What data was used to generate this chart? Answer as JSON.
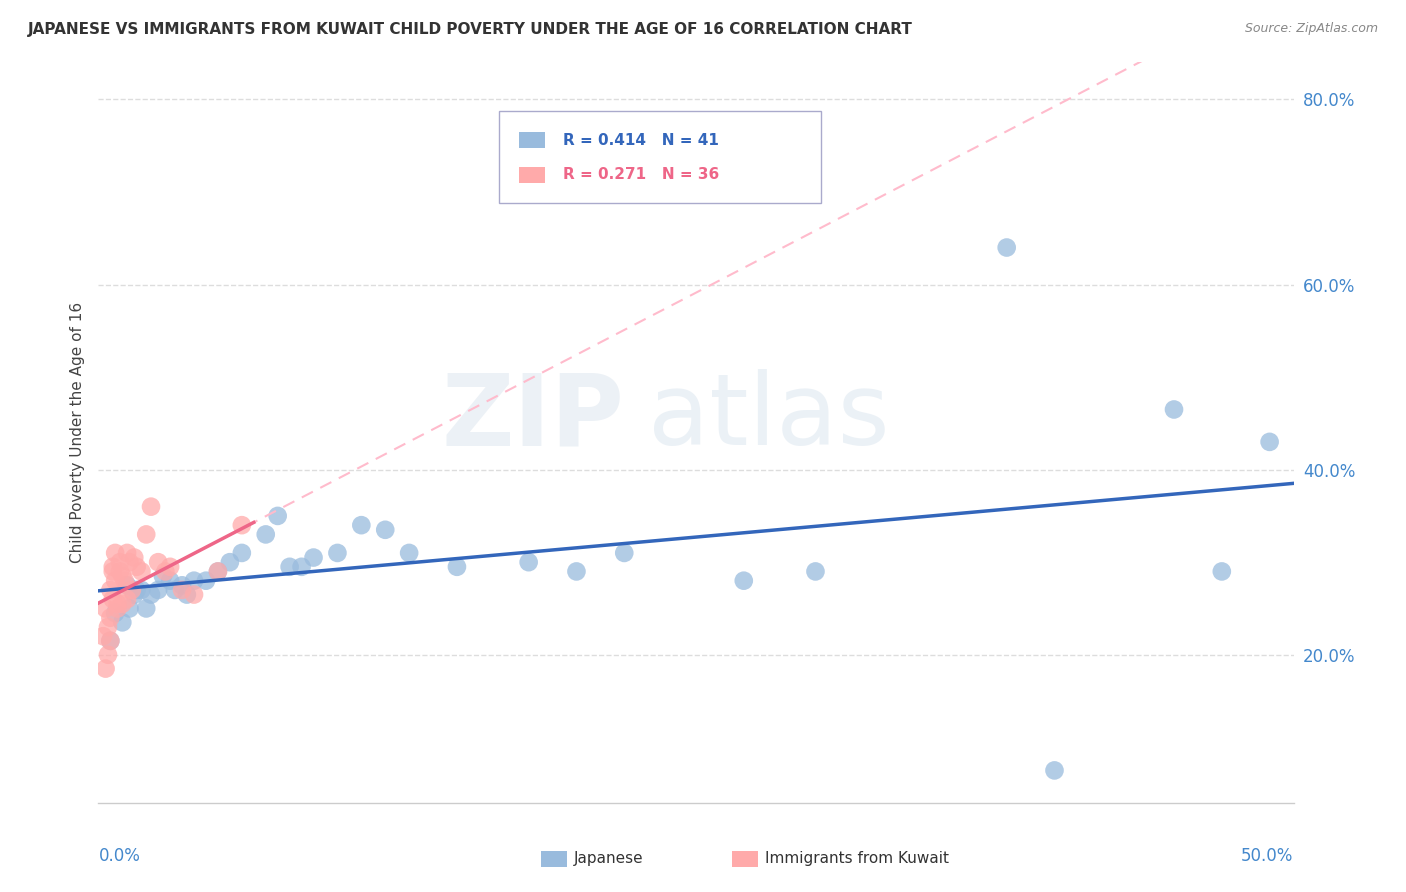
{
  "title": "JAPANESE VS IMMIGRANTS FROM KUWAIT CHILD POVERTY UNDER THE AGE OF 16 CORRELATION CHART",
  "source": "Source: ZipAtlas.com",
  "ylabel": "Child Poverty Under the Age of 16",
  "yticks": [
    0.2,
    0.4,
    0.6,
    0.8
  ],
  "ytick_labels": [
    "20.0%",
    "40.0%",
    "60.0%",
    "80.0%"
  ],
  "xlim": [
    0.0,
    0.5
  ],
  "ylim": [
    0.04,
    0.84
  ],
  "legend_blue_r": "R = 0.414",
  "legend_blue_n": "N = 41",
  "legend_pink_r": "R = 0.271",
  "legend_pink_n": "N = 36",
  "legend_label_blue": "Japanese",
  "legend_label_pink": "Immigrants from Kuwait",
  "blue_color": "#99bbdd",
  "pink_color": "#ffaaaa",
  "blue_line_color": "#3366bb",
  "pink_line_color": "#ee6688",
  "pink_dash_color": "#ffbbcc",
  "background_color": "#ffffff",
  "japanese_x": [
    0.005,
    0.007,
    0.01,
    0.012,
    0.013,
    0.015,
    0.016,
    0.018,
    0.02,
    0.022,
    0.025,
    0.027,
    0.03,
    0.032,
    0.035,
    0.037,
    0.04,
    0.045,
    0.05,
    0.055,
    0.06,
    0.07,
    0.075,
    0.08,
    0.085,
    0.09,
    0.1,
    0.11,
    0.12,
    0.13,
    0.15,
    0.18,
    0.2,
    0.22,
    0.27,
    0.3,
    0.38,
    0.4,
    0.45,
    0.47,
    0.49
  ],
  "japanese_y": [
    0.215,
    0.245,
    0.235,
    0.275,
    0.25,
    0.265,
    0.27,
    0.27,
    0.25,
    0.265,
    0.27,
    0.285,
    0.28,
    0.27,
    0.275,
    0.265,
    0.28,
    0.28,
    0.29,
    0.3,
    0.31,
    0.33,
    0.35,
    0.295,
    0.295,
    0.305,
    0.31,
    0.34,
    0.335,
    0.31,
    0.295,
    0.3,
    0.29,
    0.31,
    0.28,
    0.29,
    0.64,
    0.075,
    0.465,
    0.29,
    0.43
  ],
  "kuwait_x": [
    0.002,
    0.003,
    0.003,
    0.004,
    0.004,
    0.005,
    0.005,
    0.005,
    0.006,
    0.006,
    0.006,
    0.007,
    0.007,
    0.008,
    0.008,
    0.009,
    0.009,
    0.01,
    0.01,
    0.011,
    0.012,
    0.012,
    0.013,
    0.014,
    0.015,
    0.016,
    0.018,
    0.02,
    0.022,
    0.025,
    0.028,
    0.03,
    0.035,
    0.04,
    0.05,
    0.06
  ],
  "kuwait_y": [
    0.22,
    0.25,
    0.185,
    0.23,
    0.2,
    0.27,
    0.24,
    0.215,
    0.26,
    0.29,
    0.295,
    0.28,
    0.31,
    0.255,
    0.25,
    0.29,
    0.3,
    0.285,
    0.255,
    0.28,
    0.26,
    0.31,
    0.3,
    0.27,
    0.305,
    0.295,
    0.29,
    0.33,
    0.36,
    0.3,
    0.29,
    0.295,
    0.27,
    0.265,
    0.29,
    0.34
  ]
}
